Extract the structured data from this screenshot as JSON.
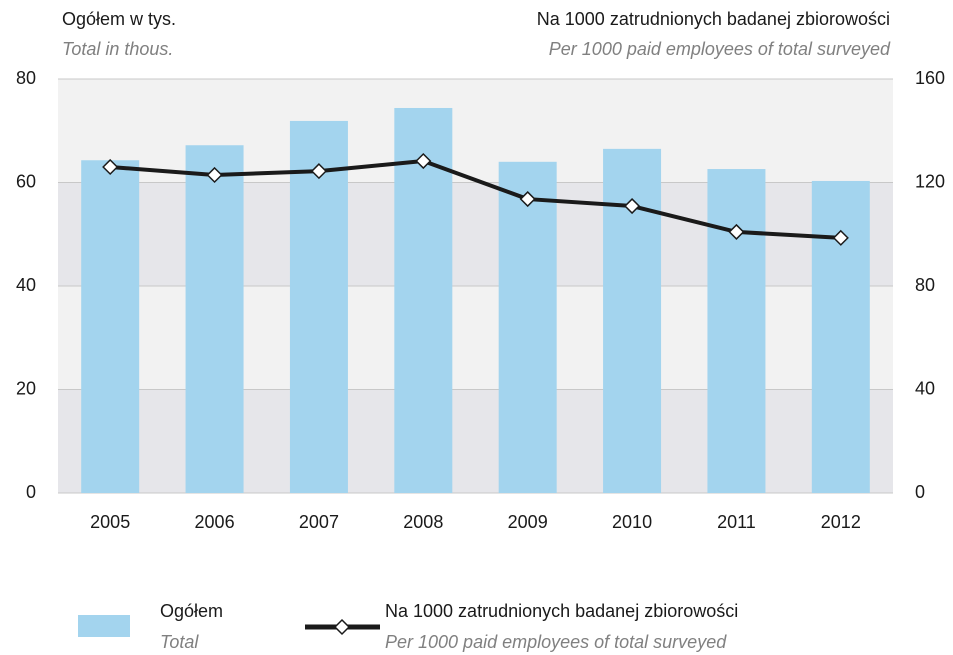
{
  "chart_data": {
    "type": "bar",
    "y_title": "Ogółem w tys.",
    "y_title_en": "Total in thous.",
    "y2_title": "Na 1000 zatrudnionych badanej zbiorowości",
    "y2_title_en": "Per 1000 paid employees of total surveyed",
    "categories": [
      "2005",
      "2006",
      "2007",
      "2008",
      "2009",
      "2010",
      "2011",
      "2012"
    ],
    "series": [
      {
        "name": "Ogółem",
        "name_en": "Total",
        "type": "bar",
        "axis": "y",
        "color": "#a3d4ee",
        "values": [
          64.3,
          67.2,
          71.9,
          74.4,
          64.0,
          66.5,
          62.6,
          60.3
        ]
      },
      {
        "name": "Na 1000 zatrudnionych badanej zbiorowości",
        "name_en": "Per 1000 paid employees of total surveyed",
        "type": "line",
        "axis": "y2",
        "color": "#1a1a1a",
        "values": [
          126.0,
          122.9,
          124.4,
          128.3,
          113.6,
          110.9,
          100.9,
          98.6
        ]
      }
    ],
    "ylim": [
      0,
      80
    ],
    "yticks": [
      0,
      20,
      40,
      60,
      80
    ],
    "y2lim": [
      0,
      160
    ],
    "y2ticks": [
      0,
      40,
      80,
      120,
      160
    ],
    "grid": true,
    "bands": [
      "#e6e6ea",
      "#f2f2f2"
    ],
    "legend": "bottom"
  }
}
